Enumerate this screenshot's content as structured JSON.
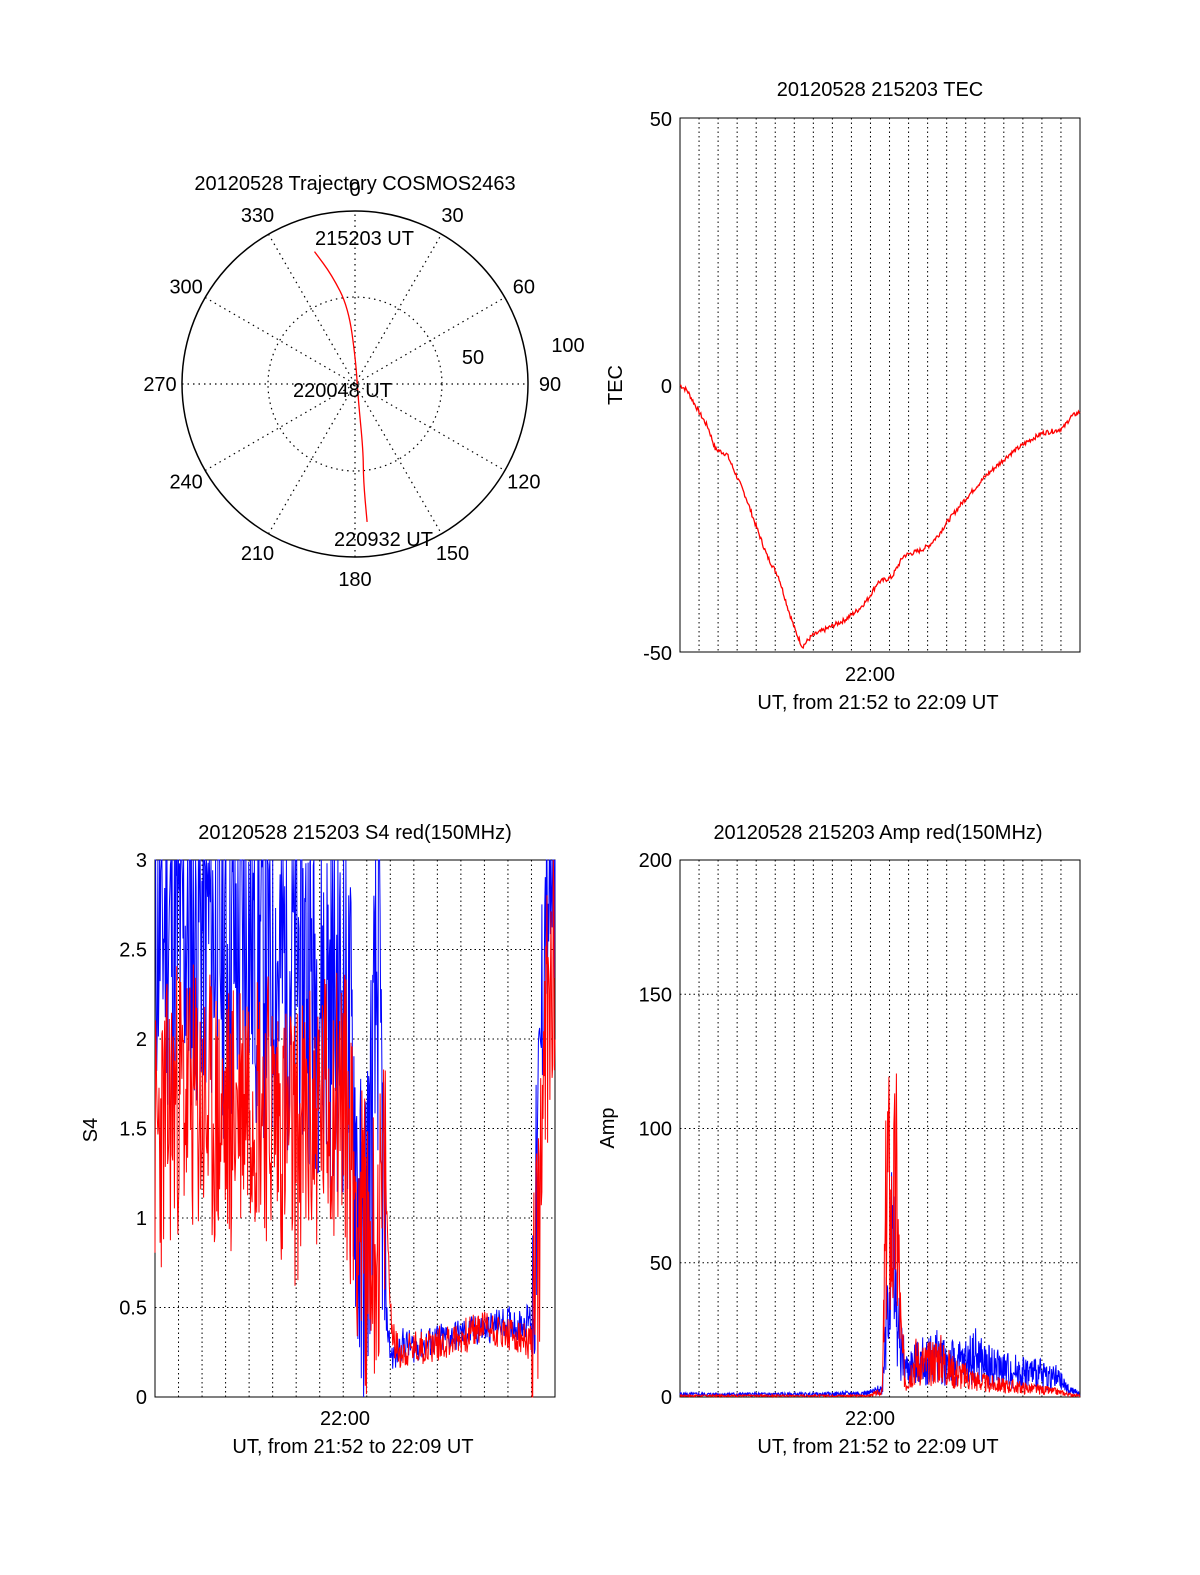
{
  "chart_data": [
    {
      "type": "polar",
      "title": "20120528 Trajectory COSMOS2463",
      "azimuth_labels": [
        "0",
        "30",
        "60",
        "90",
        "120",
        "150",
        "180",
        "210",
        "240",
        "270",
        "300",
        "330"
      ],
      "elevation_labels": [
        "100",
        "50"
      ],
      "point_labels": [
        "215203 UT",
        "220048 UT",
        "220932 UT"
      ],
      "series": [
        {
          "color": "#ff0000",
          "points_az_el": [
            [
              343,
              18
            ],
            [
              348,
              32
            ],
            [
              355,
              50
            ],
            [
              2,
              78
            ],
            [
              168,
              82
            ],
            [
              173,
              55
            ],
            [
              175,
              40
            ],
            [
              175,
              18
            ]
          ]
        }
      ]
    },
    {
      "type": "line",
      "title": "20120528 215203 TEC",
      "ylabel": "TEC",
      "xlabel": "UT, from 21:52 to 22:09 UT",
      "x_tick_labels": [
        "22:00"
      ],
      "y_tick_labels": [
        "50",
        "0",
        "-50"
      ],
      "ylim": [
        -50,
        50
      ],
      "xlim_minutes": [
        0,
        17
      ],
      "grid": "vertical dotted",
      "series": [
        {
          "color": "#ff0000",
          "x_minutes": [
            0,
            0.3,
            0.8,
            1.2,
            1.5,
            2.0,
            2.3,
            2.8,
            3.2,
            3.7,
            4.2,
            4.6,
            4.9,
            5.2,
            5.6,
            6.3,
            7.0,
            7.6,
            8.0,
            8.4,
            9.0,
            9.5,
            10.2,
            10.6,
            11.0,
            11.3,
            12.0,
            13.0,
            14.0,
            14.8,
            15.4,
            16.0,
            16.3,
            16.6,
            17.0
          ],
          "y": [
            0,
            -1,
            -5,
            -8,
            -12,
            -13,
            -16,
            -21,
            -26,
            -32,
            -36,
            -42,
            -46,
            -49,
            -47,
            -45.5,
            -44,
            -42,
            -40,
            -37,
            -36,
            -32,
            -31,
            -30,
            -28,
            -26,
            -22,
            -17,
            -13,
            -10.5,
            -9,
            -8.5,
            -8,
            -6,
            -5
          ]
        }
      ]
    },
    {
      "type": "line",
      "title": "20120528 215203 S4 red(150MHz)",
      "ylabel": "S4",
      "xlabel": "UT, from 21:52 to 22:09 UT",
      "x_tick_labels": [
        "22:00"
      ],
      "y_tick_labels": [
        "3",
        "2.5",
        "2",
        "1.5",
        "1",
        "0.5",
        "0"
      ],
      "ylim": [
        0,
        3
      ],
      "xlim_minutes": [
        0,
        17
      ],
      "grid": "dotted",
      "series": [
        {
          "color": "#0000ff",
          "x_minutes": [
            0,
            1,
            2,
            3,
            4,
            5,
            6,
            7,
            8,
            8.4,
            8.8,
            9.2,
            9.5,
            9.8,
            10.0,
            10.2,
            10.5,
            11,
            12,
            13,
            14,
            15,
            15.5,
            16,
            16.2,
            16.4,
            16.6,
            17
          ],
          "y": [
            2.7,
            2.6,
            2.7,
            2.5,
            2.6,
            2.4,
            2.5,
            2.3,
            2.2,
            1.8,
            0.6,
            1.5,
            2.5,
            0.5,
            0.25,
            0.22,
            0.3,
            0.28,
            0.32,
            0.35,
            0.38,
            0.42,
            0.4,
            0.45,
            1.0,
            2.0,
            2.8,
            2.9
          ]
        },
        {
          "color": "#ff0000",
          "x_minutes": [
            0,
            1,
            2,
            3,
            4,
            5,
            6,
            7,
            8,
            8.5,
            9,
            9.5,
            9.8,
            10.0,
            10.2,
            10.5,
            11,
            12,
            13,
            14,
            15,
            15.5,
            16,
            16.2,
            16.4,
            16.6,
            17
          ],
          "y": [
            1.4,
            1.7,
            1.6,
            1.5,
            1.8,
            1.6,
            1.4,
            1.6,
            1.7,
            1.2,
            0.8,
            0.9,
            1.2,
            0.5,
            0.28,
            0.25,
            0.27,
            0.3,
            0.33,
            0.4,
            0.35,
            0.32,
            0.3,
            0.6,
            1.2,
            2.0,
            2.6
          ]
        }
      ]
    },
    {
      "type": "line",
      "title": "20120528 215203 Amp red(150MHz)",
      "ylabel": "Amp",
      "xlabel": "UT, from 21:52 to 22:09 UT",
      "x_tick_labels": [
        "22:00"
      ],
      "y_tick_labels": [
        "200",
        "150",
        "100",
        "50",
        "0"
      ],
      "ylim": [
        0,
        200
      ],
      "xlim_minutes": [
        0,
        17
      ],
      "grid": "dotted",
      "series": [
        {
          "color": "#0000ff",
          "x_minutes": [
            0,
            2,
            4,
            6,
            8,
            8.6,
            8.8,
            9.0,
            9.2,
            9.4,
            9.6,
            10,
            10.5,
            11,
            11.5,
            12,
            12.5,
            13,
            14,
            15,
            16,
            16.5,
            17
          ],
          "y": [
            1,
            1,
            1,
            1,
            1.5,
            3,
            40,
            55,
            30,
            18,
            10,
            12,
            14,
            15,
            13,
            12,
            16,
            12,
            10,
            9,
            7,
            3,
            1
          ]
        },
        {
          "color": "#ff0000",
          "x_minutes": [
            0,
            2,
            4,
            6,
            8,
            8.6,
            8.8,
            9.0,
            9.2,
            9.4,
            9.6,
            10,
            10.5,
            11,
            11.5,
            12,
            13,
            14,
            15,
            16,
            16.5,
            17
          ],
          "y": [
            0.5,
            0.5,
            0.5,
            0.5,
            0.5,
            2,
            85,
            60,
            75,
            20,
            5,
            14,
            12,
            15,
            10,
            8,
            5,
            4,
            3,
            2,
            1,
            0.5
          ]
        }
      ]
    }
  ]
}
